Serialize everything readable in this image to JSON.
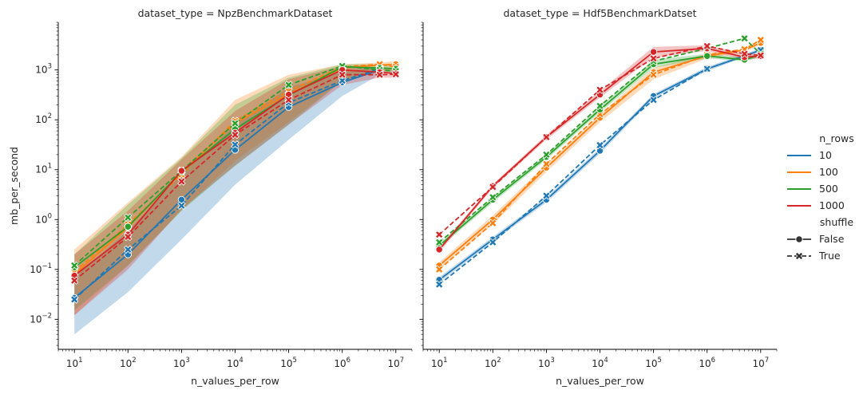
{
  "chart_data": {
    "type": "line",
    "figure": "seaborn relplot (kind=line) faceted by dataset_type, log-log axes",
    "x_scale": "log",
    "y_scale": "log",
    "xlim": [
      5,
      20000000
    ],
    "ylim": [
      0.0025,
      9000
    ],
    "x_ticks": [
      10,
      100,
      1000,
      10000,
      100000,
      1000000,
      10000000
    ],
    "x_tick_labels": [
      {
        "base": "10",
        "exp": "1"
      },
      {
        "base": "10",
        "exp": "2"
      },
      {
        "base": "10",
        "exp": "3"
      },
      {
        "base": "10",
        "exp": "4"
      },
      {
        "base": "10",
        "exp": "5"
      },
      {
        "base": "10",
        "exp": "6"
      },
      {
        "base": "10",
        "exp": "7"
      }
    ],
    "y_ticks": [
      0.01,
      0.1,
      1,
      10,
      100,
      1000
    ],
    "y_tick_labels": [
      {
        "base": "10",
        "exp": "−2"
      },
      {
        "base": "10",
        "exp": "−1"
      },
      {
        "base": "10",
        "exp": "0"
      },
      {
        "base": "10",
        "exp": "1"
      },
      {
        "base": "10",
        "exp": "2"
      },
      {
        "base": "10",
        "exp": "3"
      }
    ],
    "xlabel": "n_values_per_row",
    "ylabel": "mb_per_second",
    "grid": false,
    "legend": {
      "placement": "right",
      "hue_title": "n_rows",
      "hue_entries": [
        {
          "label": "10",
          "color": "#1f77b4"
        },
        {
          "label": "100",
          "color": "#ff7f0e"
        },
        {
          "label": "500",
          "color": "#2ca02c"
        },
        {
          "label": "1000",
          "color": "#d62728"
        }
      ],
      "style_title": "shuffle",
      "style_entries": [
        {
          "label": "False",
          "marker": "circle",
          "dash": "solid"
        },
        {
          "label": "True",
          "marker": "x",
          "dash": "dashed"
        }
      ]
    },
    "panels": [
      {
        "title": "dataset_type = NpzBenchmarkDataset",
        "series": [
          {
            "n_rows": "10",
            "shuffle": "False",
            "x": [
              10,
              100,
              1000,
              10000,
              100000,
              1000000,
              5000000
            ],
            "y": [
              0.027,
              0.2,
              2.5,
              25,
              180,
              560,
              1000
            ],
            "ci_lo": [
              0.005,
              0.035,
              0.4,
              5,
              40,
              300,
              800
            ],
            "ci_hi": [
              0.07,
              0.6,
              8,
              80,
              450,
              900,
              1200
            ]
          },
          {
            "n_rows": "10",
            "shuffle": "True",
            "x": [
              10,
              100,
              1000,
              10000,
              100000,
              1000000,
              5000000
            ],
            "y": [
              0.025,
              0.25,
              1.9,
              32,
              220,
              610,
              1050
            ]
          },
          {
            "n_rows": "100",
            "shuffle": "False",
            "x": [
              10,
              100,
              1000,
              10000,
              100000,
              1000000,
              5000000,
              10000000
            ],
            "y": [
              0.08,
              0.7,
              9,
              85,
              330,
              1100,
              1250,
              1300
            ],
            "ci_lo": [
              0.012,
              0.12,
              1.5,
              15,
              90,
              600,
              900,
              1000
            ],
            "ci_hi": [
              0.25,
              2.2,
              18,
              250,
              800,
              1300,
              1400,
              1500
            ]
          },
          {
            "n_rows": "100",
            "shuffle": "True",
            "x": [
              10,
              100,
              1000,
              10000,
              100000,
              1000000,
              5000000,
              10000000
            ],
            "y": [
              0.09,
              0.8,
              8,
              95,
              380,
              1150,
              1300,
              1150
            ]
          },
          {
            "n_rows": "500",
            "shuffle": "False",
            "x": [
              10,
              100,
              1000,
              10000,
              100000,
              1000000,
              5000000,
              10000000
            ],
            "y": [
              0.11,
              0.72,
              9,
              65,
              310,
              1150,
              1100,
              1050
            ],
            "ci_lo": [
              0.015,
              0.12,
              1.5,
              12,
              80,
              600,
              900,
              900
            ],
            "ci_hi": [
              0.2,
              2,
              17,
              200,
              700,
              1300,
              1300,
              1200
            ]
          },
          {
            "n_rows": "500",
            "shuffle": "True",
            "x": [
              10,
              100,
              1000,
              10000,
              100000,
              1000000,
              5000000,
              10000000
            ],
            "y": [
              0.12,
              1.1,
              9.5,
              85,
              500,
              1200,
              1000,
              950
            ]
          },
          {
            "n_rows": "1000",
            "shuffle": "False",
            "x": [
              10,
              100,
              1000,
              10000,
              100000,
              1000000,
              5000000,
              10000000
            ],
            "y": [
              0.075,
              0.5,
              9.5,
              55,
              320,
              1000,
              900,
              850
            ],
            "ci_lo": [
              0.012,
              0.1,
              1.6,
              12,
              80,
              500,
              700,
              700
            ],
            "ci_hi": [
              0.2,
              1.5,
              16,
              150,
              650,
              1200,
              1100,
              1000
            ]
          },
          {
            "n_rows": "1000",
            "shuffle": "True",
            "x": [
              10,
              100,
              1000,
              10000,
              100000,
              1000000,
              5000000,
              10000000
            ],
            "y": [
              0.06,
              0.45,
              5.8,
              50,
              250,
              800,
              800,
              820
            ]
          }
        ]
      },
      {
        "title": "dataset_type = Hdf5BenchmarkDatset",
        "series": [
          {
            "n_rows": "10",
            "shuffle": "False",
            "x": [
              10,
              100,
              1000,
              10000,
              100000,
              1000000,
              5000000,
              10000000
            ],
            "y": [
              0.062,
              0.4,
              2.5,
              24,
              300,
              1050,
              1900,
              2500
            ],
            "ci_lo": [
              0.055,
              0.36,
              2.2,
              21,
              270,
              950,
              1800,
              2300
            ],
            "ci_hi": [
              0.07,
              0.45,
              2.8,
              27,
              330,
              1150,
              2100,
              2700
            ]
          },
          {
            "n_rows": "10",
            "shuffle": "True",
            "x": [
              10,
              100,
              1000,
              10000,
              100000,
              1000000,
              5000000,
              10000000
            ],
            "y": [
              0.05,
              0.35,
              3.0,
              31,
              250,
              1050,
              1900,
              2500
            ]
          },
          {
            "n_rows": "100",
            "shuffle": "False",
            "x": [
              10,
              100,
              1000,
              10000,
              100000,
              1000000,
              5000000,
              10000000
            ],
            "y": [
              0.12,
              1.0,
              11,
              110,
              900,
              1900,
              2500,
              3500
            ],
            "ci_lo": [
              0.1,
              0.8,
              9,
              90,
              650,
              1700,
              2300,
              3200
            ],
            "ci_hi": [
              0.14,
              1.2,
              13,
              130,
              1100,
              2100,
              2700,
              3800
            ]
          },
          {
            "n_rows": "100",
            "shuffle": "True",
            "x": [
              10,
              100,
              1000,
              10000,
              100000,
              1000000,
              5000000,
              10000000
            ],
            "y": [
              0.1,
              0.85,
              13,
              130,
              800,
              2000,
              2600,
              4000
            ]
          },
          {
            "n_rows": "500",
            "shuffle": "False",
            "x": [
              10,
              100,
              1000,
              10000,
              100000,
              1000000,
              5000000,
              10000000
            ],
            "y": [
              0.3,
              2.5,
              18,
              160,
              1300,
              1900,
              1600,
              2000
            ],
            "ci_lo": [
              0.27,
              2.2,
              16,
              140,
              1100,
              1700,
              1500,
              1800
            ],
            "ci_hi": [
              0.33,
              2.8,
              20,
              180,
              1600,
              2100,
              1800,
              2200
            ]
          },
          {
            "n_rows": "500",
            "shuffle": "True",
            "x": [
              10,
              100,
              1000,
              10000,
              100000,
              1000000,
              5000000,
              10000000
            ],
            "y": [
              0.35,
              2.8,
              20,
              190,
              1500,
              2700,
              4300,
              2100
            ]
          },
          {
            "n_rows": "1000",
            "shuffle": "False",
            "x": [
              10,
              100,
              1000,
              10000,
              100000,
              1000000,
              5000000,
              10000000
            ],
            "y": [
              0.25,
              4.7,
              45,
              320,
              2300,
              2700,
              1800,
              1900
            ],
            "ci_lo": [
              0.22,
              4.3,
              40,
              280,
              1800,
              2400,
              1600,
              1700
            ],
            "ci_hi": [
              0.28,
              5.1,
              50,
              380,
              2900,
              3100,
              2100,
              2100
            ]
          },
          {
            "n_rows": "1000",
            "shuffle": "True",
            "x": [
              10,
              100,
              1000,
              10000,
              100000,
              1000000,
              5000000,
              10000000
            ],
            "y": [
              0.5,
              4.5,
              45,
              400,
              1700,
              3000,
              2100,
              1950
            ]
          }
        ]
      }
    ]
  }
}
